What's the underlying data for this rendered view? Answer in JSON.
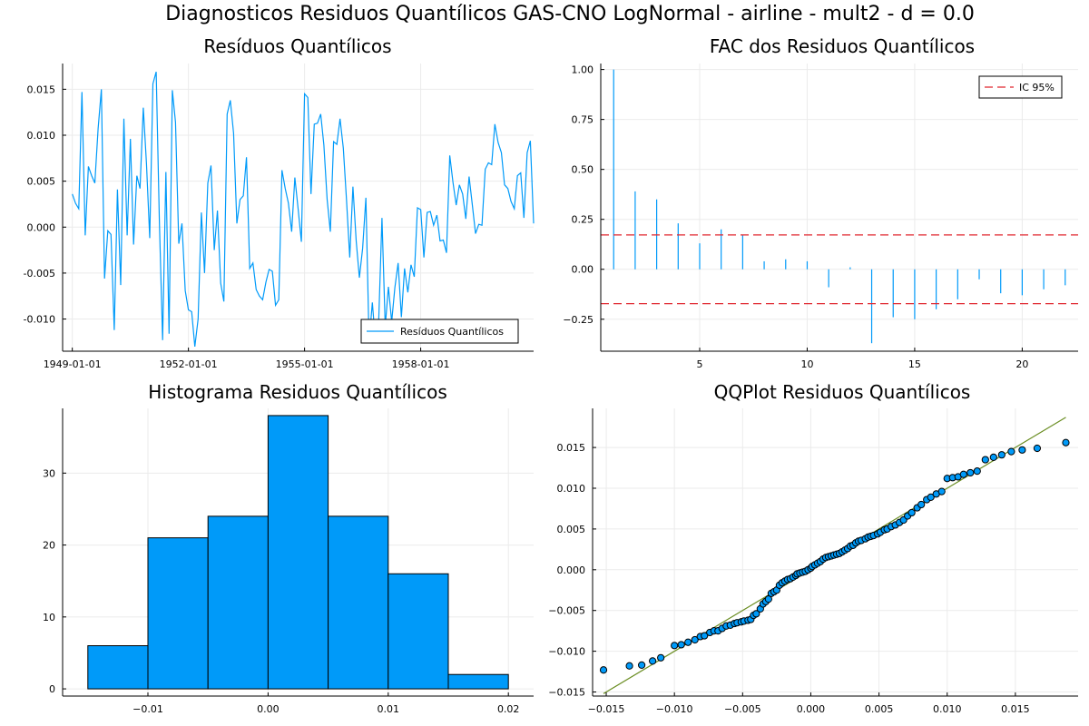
{
  "figure_title": "Diagnosticos Residuos  Quantílicos GAS-CNO LogNormal - airline - mult2 - d = 0.0",
  "colors": {
    "series": "#009AF9",
    "band": "#E0262F",
    "qq_line": "#6B8E23",
    "grid": "#ebebeb",
    "axis": "#000000"
  },
  "chart_data": [
    {
      "id": "residuals",
      "type": "line",
      "title": "Resíduos  Quantílicos",
      "xlabel": "",
      "ylabel": "",
      "x_start": "1949-01-01",
      "x_step": "1 month",
      "xlim": [
        "1948-10-01",
        "1960-12-01"
      ],
      "ylim": [
        -0.0135,
        0.0178
      ],
      "xticks": [
        "1949-01-01",
        "1952-01-01",
        "1955-01-01",
        "1958-01-01"
      ],
      "yticks": [
        -0.01,
        -0.005,
        0.0,
        0.005,
        0.01,
        0.015
      ],
      "ytick_labels": [
        "-0.010",
        "-0.005",
        "0.000",
        "0.005",
        "0.010",
        "0.015"
      ],
      "grid": true,
      "legend": "bottom-right",
      "series": [
        {
          "name": "Resíduos Quantílicos",
          "values": [
            0.0036,
            0.0026,
            0.002,
            0.0147,
            -0.0009,
            0.0066,
            0.0056,
            0.0048,
            0.0107,
            0.015,
            -0.0056,
            -0.0004,
            -0.0008,
            -0.0112,
            0.0041,
            -0.0063,
            0.0118,
            -0.0009,
            0.0096,
            -0.0019,
            0.0056,
            0.0042,
            0.013,
            0.0069,
            -0.0012,
            0.0156,
            0.0169,
            0.0007,
            -0.0123,
            0.006,
            -0.0116,
            0.0149,
            0.0114,
            -0.0018,
            0.0004,
            -0.0069,
            -0.009,
            -0.0092,
            -0.013,
            -0.01,
            0.0016,
            -0.005,
            0.0048,
            0.0067,
            -0.0025,
            0.0018,
            -0.0061,
            -0.0081,
            0.0123,
            0.0138,
            0.0102,
            0.0004,
            0.003,
            0.0034,
            0.0076,
            -0.0045,
            -0.0039,
            -0.0068,
            -0.0075,
            -0.0079,
            -0.006,
            -0.0046,
            -0.0048,
            -0.0085,
            -0.0079,
            0.0062,
            0.0042,
            0.0026,
            -0.0005,
            0.0054,
            0.002,
            -0.0016,
            0.0145,
            0.0141,
            0.0036,
            0.0112,
            0.0113,
            0.0123,
            0.0089,
            0.003,
            -0.0005,
            0.0093,
            0.009,
            0.0118,
            0.0086,
            0.003,
            -0.0033,
            0.0044,
            -0.0015,
            -0.0055,
            -0.0023,
            0.0032,
            -0.0125,
            -0.0082,
            -0.0126,
            -0.0099,
            0.001,
            -0.0108,
            -0.0065,
            -0.0103,
            -0.0066,
            -0.0039,
            -0.0098,
            -0.0045,
            -0.0071,
            -0.0041,
            -0.0054,
            0.0021,
            0.0019,
            -0.0033,
            0.0016,
            0.0017,
            0.0002,
            0.0013,
            -0.0015,
            -0.0014,
            -0.0028,
            0.0078,
            0.0049,
            0.0024,
            0.0046,
            0.0036,
            0.0009,
            0.0055,
            0.0024,
            -0.0007,
            0.0003,
            0.0002,
            0.0063,
            0.007,
            0.0068,
            0.0112,
            0.0092,
            0.0081,
            0.0046,
            0.0042,
            0.0028,
            0.002,
            0.0056,
            0.0059,
            0.001,
            0.0081,
            0.0094,
            0.0004
          ]
        }
      ]
    },
    {
      "id": "acf",
      "type": "bar",
      "title": "FAC dos Residuos Quantílicos",
      "xlabel": "",
      "ylabel": "",
      "xlim": [
        0.4,
        22.6
      ],
      "ylim": [
        -0.41,
        1.03
      ],
      "xticks": [
        5,
        10,
        15,
        20
      ],
      "yticks": [
        -0.25,
        0.0,
        0.25,
        0.5,
        0.75,
        1.0
      ],
      "ytick_labels": [
        "−0.25",
        "0.00",
        "0.25",
        "0.50",
        "0.75",
        "1.00"
      ],
      "lags": [
        1,
        2,
        3,
        4,
        5,
        6,
        7,
        8,
        9,
        10,
        11,
        12,
        13,
        14,
        15,
        16,
        17,
        18,
        19,
        20,
        21,
        22
      ],
      "values": [
        1.0,
        0.39,
        0.35,
        0.23,
        0.13,
        0.2,
        0.17,
        0.04,
        0.05,
        0.04,
        -0.09,
        0.01,
        -0.37,
        -0.24,
        -0.25,
        -0.2,
        -0.15,
        -0.05,
        -0.12,
        -0.13,
        -0.1,
        -0.08
      ],
      "confidence_band": 0.172,
      "grid": true,
      "legend": "top-right",
      "legend_label": "IC 95%"
    },
    {
      "id": "histogram",
      "type": "bar",
      "title": "Histograma Residuos Quantílicos",
      "xlabel": "",
      "ylabel": "",
      "bin_edges": [
        -0.015,
        -0.01,
        -0.005,
        0.0,
        0.005,
        0.01,
        0.015,
        0.02
      ],
      "counts": [
        6,
        21,
        24,
        38,
        24,
        16,
        2
      ],
      "xlim": [
        -0.0171,
        0.0221
      ],
      "ylim": [
        -1.0,
        39.0
      ],
      "xticks": [
        -0.01,
        0.0,
        0.01,
        0.02
      ],
      "xtick_labels": [
        "−0.01",
        "0.00",
        "0.01",
        "0.02"
      ],
      "yticks": [
        0,
        10,
        20,
        30
      ],
      "grid": true
    },
    {
      "id": "qqplot",
      "type": "scatter",
      "title": "QQPlot Residuos Quantílicos",
      "xlabel": "",
      "ylabel": "",
      "xlim": [
        -0.016,
        0.0196
      ],
      "ylim": [
        -0.0155,
        0.0198
      ],
      "xticks": [
        -0.015,
        -0.01,
        -0.005,
        0.0,
        0.005,
        0.01,
        0.015
      ],
      "xtick_labels": [
        "−0.015",
        "−0.010",
        "−0.005",
        "0.000",
        "0.005",
        "0.010",
        "0.015"
      ],
      "yticks": [
        -0.015,
        -0.01,
        -0.005,
        0.0,
        0.005,
        0.01,
        0.015
      ],
      "ytick_labels": [
        "−0.015",
        "−0.010",
        "−0.005",
        "0.000",
        "0.005",
        "0.010",
        "0.015"
      ],
      "reference_line": {
        "x": [
          -0.0152,
          0.0187
        ],
        "y": [
          -0.0152,
          0.0187
        ]
      },
      "points": [
        [
          -0.0152,
          -0.0123
        ],
        [
          -0.0133,
          -0.0118
        ],
        [
          -0.0124,
          -0.0117
        ],
        [
          -0.0116,
          -0.0112
        ],
        [
          -0.011,
          -0.0108
        ],
        [
          -0.01,
          -0.0093
        ],
        [
          -0.0095,
          -0.0092
        ],
        [
          -0.009,
          -0.0089
        ],
        [
          -0.0085,
          -0.0086
        ],
        [
          -0.0081,
          -0.0082
        ],
        [
          -0.0078,
          -0.0081
        ],
        [
          -0.0074,
          -0.0077
        ],
        [
          -0.0071,
          -0.0075
        ],
        [
          -0.0068,
          -0.0075
        ],
        [
          -0.0065,
          -0.0072
        ],
        [
          -0.0062,
          -0.0069
        ],
        [
          -0.0059,
          -0.0068
        ],
        [
          -0.0056,
          -0.0066
        ],
        [
          -0.0054,
          -0.0065
        ],
        [
          -0.0051,
          -0.0064
        ],
        [
          -0.0049,
          -0.0063
        ],
        [
          -0.0046,
          -0.0062
        ],
        [
          -0.0044,
          -0.0061
        ],
        [
          -0.0042,
          -0.0056
        ],
        [
          -0.004,
          -0.0054
        ],
        [
          -0.0037,
          -0.0048
        ],
        [
          -0.0035,
          -0.0042
        ],
        [
          -0.0033,
          -0.0039
        ],
        [
          -0.0031,
          -0.0036
        ],
        [
          -0.0029,
          -0.0029
        ],
        [
          -0.0027,
          -0.0027
        ],
        [
          -0.0025,
          -0.0025
        ],
        [
          -0.0023,
          -0.0019
        ],
        [
          -0.0021,
          -0.0016
        ],
        [
          -0.0019,
          -0.0014
        ],
        [
          -0.0017,
          -0.0012
        ],
        [
          -0.0015,
          -0.0011
        ],
        [
          -0.0013,
          -0.0009
        ],
        [
          -0.0011,
          -0.0007
        ],
        [
          -0.001,
          -0.0005
        ],
        [
          -0.0008,
          -0.0004
        ],
        [
          -0.0006,
          -0.0003
        ],
        [
          -0.0004,
          -0.0002
        ],
        [
          -0.0002,
          0.0
        ],
        [
          0.0,
          0.0002
        ],
        [
          0.0001,
          0.0004
        ],
        [
          0.0003,
          0.0006
        ],
        [
          0.0005,
          0.0008
        ],
        [
          0.0007,
          0.001
        ],
        [
          0.0009,
          0.0013
        ],
        [
          0.0011,
          0.0015
        ],
        [
          0.0013,
          0.0016
        ],
        [
          0.0015,
          0.0017
        ],
        [
          0.0017,
          0.0018
        ],
        [
          0.0019,
          0.0019
        ],
        [
          0.0021,
          0.002
        ],
        [
          0.0023,
          0.0022
        ],
        [
          0.0025,
          0.0024
        ],
        [
          0.0027,
          0.0026
        ],
        [
          0.0029,
          0.0029
        ],
        [
          0.0031,
          0.003
        ],
        [
          0.0033,
          0.0033
        ],
        [
          0.0035,
          0.0035
        ],
        [
          0.0037,
          0.0036
        ],
        [
          0.004,
          0.0038
        ],
        [
          0.0042,
          0.004
        ],
        [
          0.0044,
          0.0041
        ],
        [
          0.0046,
          0.0042
        ],
        [
          0.0049,
          0.0044
        ],
        [
          0.0051,
          0.0046
        ],
        [
          0.0054,
          0.0049
        ],
        [
          0.0056,
          0.005
        ],
        [
          0.0059,
          0.0053
        ],
        [
          0.0062,
          0.0055
        ],
        [
          0.0065,
          0.0058
        ],
        [
          0.0068,
          0.0061
        ],
        [
          0.0071,
          0.0066
        ],
        [
          0.0074,
          0.007
        ],
        [
          0.0078,
          0.0076
        ],
        [
          0.0081,
          0.008
        ],
        [
          0.0085,
          0.0086
        ],
        [
          0.0088,
          0.0089
        ],
        [
          0.0092,
          0.0093
        ],
        [
          0.0096,
          0.0096
        ],
        [
          0.01,
          0.0112
        ],
        [
          0.0104,
          0.0113
        ],
        [
          0.0108,
          0.0114
        ],
        [
          0.0112,
          0.0117
        ],
        [
          0.0117,
          0.0119
        ],
        [
          0.0122,
          0.0121
        ],
        [
          0.0128,
          0.0135
        ],
        [
          0.0134,
          0.0138
        ],
        [
          0.014,
          0.0141
        ],
        [
          0.0147,
          0.0145
        ],
        [
          0.0155,
          0.0147
        ],
        [
          0.0166,
          0.0149
        ],
        [
          0.0187,
          0.0156
        ]
      ],
      "grid": true
    }
  ]
}
